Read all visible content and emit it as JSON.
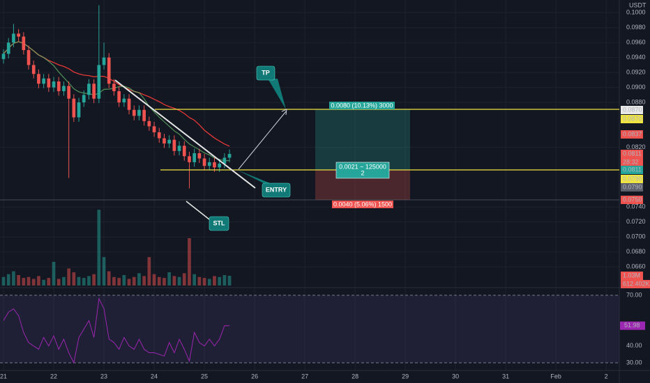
{
  "chart_data": {
    "type": "candlestick",
    "price_unit": "USDT",
    "x": [
      21.0,
      21.1,
      21.2,
      21.3,
      21.4,
      21.5,
      21.6,
      21.7,
      21.8,
      21.9,
      22.0,
      22.1,
      22.2,
      22.3,
      22.4,
      22.5,
      22.6,
      22.7,
      22.8,
      22.9,
      23.0,
      23.1,
      23.2,
      23.3,
      23.4,
      23.5,
      23.6,
      23.7,
      23.8,
      23.9,
      24.0,
      24.1,
      24.2,
      24.3,
      24.4,
      24.5,
      24.6,
      24.7,
      24.8,
      24.9,
      25.0,
      25.1,
      25.2,
      25.3,
      25.4,
      25.5
    ],
    "open": [
      0.0938,
      0.0945,
      0.096,
      0.0972,
      0.0968,
      0.095,
      0.093,
      0.0918,
      0.0905,
      0.0912,
      0.09,
      0.0908,
      0.0895,
      0.0902,
      0.0885,
      0.086,
      0.088,
      0.089,
      0.0905,
      0.0885,
      0.093,
      0.094,
      0.0905,
      0.0895,
      0.088,
      0.0885,
      0.087,
      0.0862,
      0.087,
      0.0855,
      0.0848,
      0.084,
      0.0832,
      0.0825,
      0.083,
      0.0815,
      0.0822,
      0.0808,
      0.08,
      0.0812,
      0.0805,
      0.0795,
      0.08,
      0.0793,
      0.0798,
      0.0806
    ],
    "high": [
      0.0951,
      0.0966,
      0.0985,
      0.0978,
      0.0974,
      0.0956,
      0.0936,
      0.0924,
      0.0918,
      0.0918,
      0.0914,
      0.0914,
      0.0908,
      0.0908,
      0.0891,
      0.0886,
      0.0896,
      0.0911,
      0.0911,
      0.101,
      0.096,
      0.0946,
      0.0911,
      0.0901,
      0.0891,
      0.0891,
      0.0876,
      0.0876,
      0.0876,
      0.0861,
      0.0854,
      0.0846,
      0.0838,
      0.0836,
      0.0836,
      0.0828,
      0.0828,
      0.0814,
      0.0818,
      0.0818,
      0.0811,
      0.0806,
      0.0806,
      0.0804,
      0.0812,
      0.0817
    ],
    "low": [
      0.0932,
      0.0939,
      0.0954,
      0.0962,
      0.0944,
      0.0924,
      0.0912,
      0.0899,
      0.0899,
      0.0894,
      0.0894,
      0.0889,
      0.0889,
      0.0779,
      0.0854,
      0.0854,
      0.0874,
      0.0884,
      0.0879,
      0.0879,
      0.0924,
      0.0899,
      0.0889,
      0.0874,
      0.0874,
      0.0864,
      0.0856,
      0.0856,
      0.0849,
      0.0842,
      0.0834,
      0.0826,
      0.0819,
      0.0819,
      0.0809,
      0.0809,
      0.0802,
      0.0765,
      0.0794,
      0.0799,
      0.0789,
      0.0789,
      0.0787,
      0.0787,
      0.0792,
      0.08
    ],
    "close": [
      0.0945,
      0.096,
      0.0972,
      0.0968,
      0.095,
      0.093,
      0.0918,
      0.0905,
      0.0912,
      0.09,
      0.0908,
      0.0895,
      0.0902,
      0.0885,
      0.086,
      0.088,
      0.089,
      0.0905,
      0.0885,
      0.093,
      0.094,
      0.0905,
      0.0895,
      0.088,
      0.0885,
      0.087,
      0.0862,
      0.087,
      0.0855,
      0.0848,
      0.084,
      0.0832,
      0.0825,
      0.083,
      0.0815,
      0.0822,
      0.0808,
      0.08,
      0.0812,
      0.0805,
      0.0795,
      0.08,
      0.0793,
      0.0798,
      0.0806,
      0.0811
    ],
    "volume": [
      900,
      1200,
      1500,
      1100,
      800,
      900,
      700,
      1000,
      600,
      800,
      2500,
      700,
      900,
      1800,
      1400,
      900,
      800,
      1000,
      1200,
      8000,
      3000,
      1500,
      900,
      800,
      1100,
      700,
      900,
      1300,
      1000,
      3000,
      1200,
      900,
      800,
      1400,
      1000,
      900,
      1300,
      5000,
      1200,
      900,
      800,
      700,
      1000,
      900,
      1100,
      1030
    ],
    "volume_lim": [
      0,
      5000
    ],
    "rsi": [
      55,
      60,
      62,
      58,
      48,
      42,
      40,
      38,
      45,
      40,
      46,
      38,
      44,
      36,
      30,
      45,
      50,
      55,
      45,
      68,
      62,
      44,
      42,
      38,
      45,
      40,
      38,
      44,
      38,
      36,
      36,
      35,
      34,
      42,
      36,
      44,
      38,
      31,
      48,
      42,
      40,
      44,
      40,
      44,
      52,
      51.98
    ],
    "rsi_lim": [
      26.3,
      73.7
    ],
    "rsi_ticks": [
      {
        "value": 70,
        "label": "70.00"
      },
      {
        "value": 40,
        "label": "40.00"
      },
      {
        "value": 30,
        "label": "30.00"
      }
    ],
    "rsi_last": "51.98",
    "colors": {
      "up": "#26a69a",
      "down": "#ef5350",
      "rsi": "#9c27b0"
    },
    "xlim": [
      20.93,
      33.29
    ],
    "xticks": [
      21,
      22,
      23,
      24,
      25,
      26,
      27,
      28,
      29,
      30,
      31,
      {
        "value": 32,
        "label": "Feb"
      },
      {
        "value": 33,
        "label": "2"
      }
    ],
    "ylim": [
      0.0635,
      0.1017
    ],
    "yticks": [
      {
        "value": 0.1,
        "label": "0.1000"
      },
      {
        "value": 0.098,
        "label": "0.0980"
      },
      {
        "value": 0.096,
        "label": "0.0960"
      },
      {
        "value": 0.094,
        "label": "0.0940"
      },
      {
        "value": 0.092,
        "label": "0.0920"
      },
      {
        "value": 0.09,
        "label": "0.0900"
      },
      {
        "value": 0.088,
        "label": "0.0880"
      },
      {
        "value": 0.082,
        "label": "0.0820"
      },
      {
        "value": 0.074,
        "label": "0.0740"
      },
      {
        "value": 0.072,
        "label": "0.0720"
      },
      {
        "value": 0.07,
        "label": "0.0700"
      },
      {
        "value": 0.068,
        "label": "0.0680"
      },
      {
        "value": 0.066,
        "label": "0.0660"
      }
    ],
    "price_tags": [
      "0.0870",
      "0.0870",
      "0.0837",
      "0.0811",
      "28:32",
      "0.0811",
      "0.0790",
      "0.0790",
      "0.0750",
      "1.03M",
      "612.402K"
    ],
    "position": {
      "target": "0.0080 (10.13%) 3000",
      "center": "0.0021 ~ 125000",
      "center_ratio": "2",
      "stop": "0.0040 (5.06%) 1500"
    },
    "callouts": {
      "tp": "TP",
      "entry": "ENTRY",
      "stop": "STL"
    }
  }
}
